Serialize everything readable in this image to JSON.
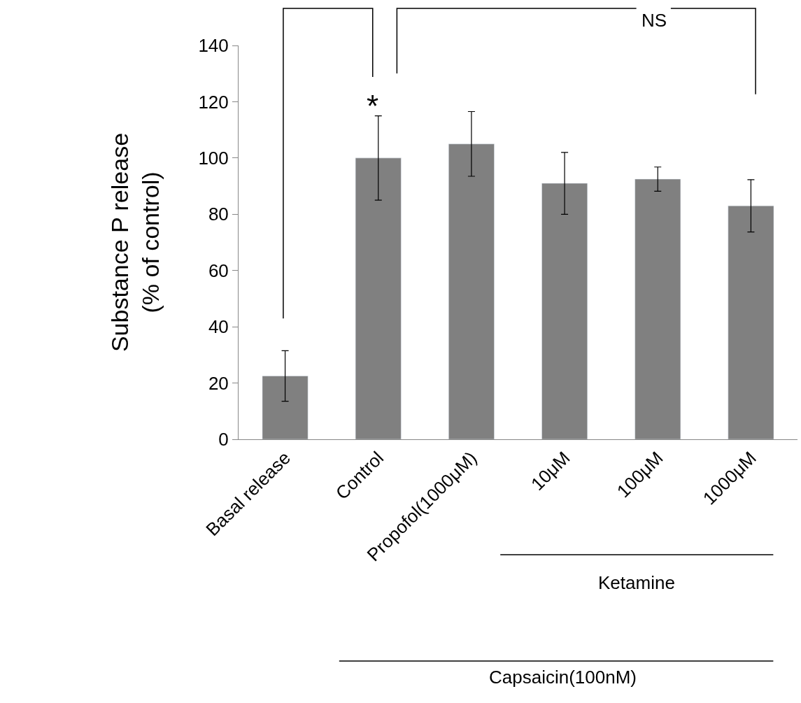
{
  "chart_data": {
    "type": "bar",
    "categories": [
      "Basal release",
      "Control",
      "Propofol(1000μM)",
      "10μM",
      "100μM",
      "1000μM"
    ],
    "values": [
      22.5,
      100,
      105,
      91,
      92.5,
      83
    ],
    "errors": [
      9,
      15,
      11.5,
      11,
      4.3,
      9.3
    ],
    "color": "#808080",
    "ylabel": "Substance P release\n(% of control)",
    "ylim": [
      0,
      140
    ],
    "yticks": [
      0,
      20,
      40,
      60,
      80,
      100,
      120,
      140
    ],
    "annotations": [
      "*",
      "NS",
      "Ketamine",
      "Capsaicin(100nM)"
    ]
  }
}
